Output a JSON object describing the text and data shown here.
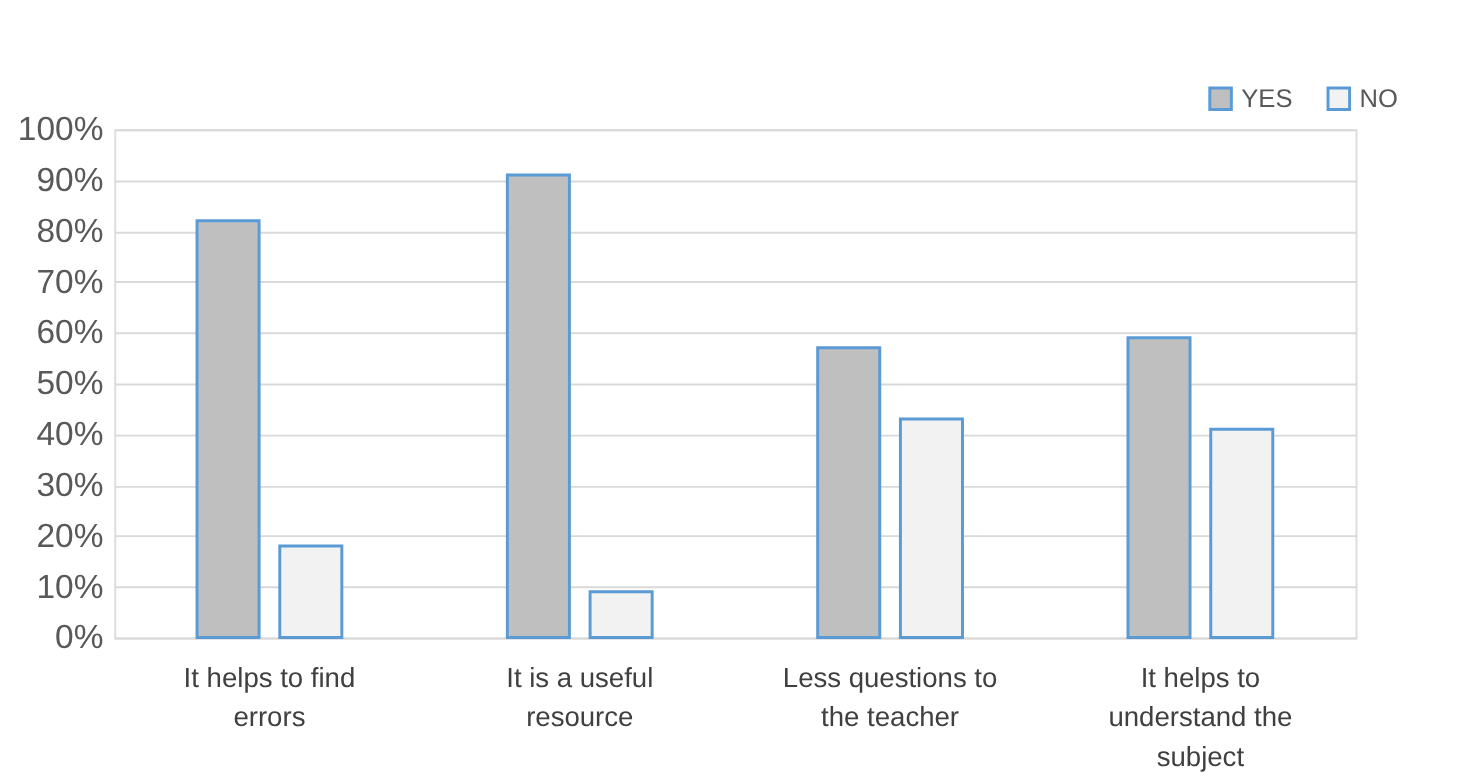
{
  "chart_data": {
    "type": "bar",
    "categories": [
      "It helps to find errors",
      "It is a useful resource",
      "Less questions to the teacher",
      "It helps to understand the subject"
    ],
    "series": [
      {
        "name": "YES",
        "color": "#bfbfbf",
        "values": [
          82,
          91,
          57,
          59
        ]
      },
      {
        "name": "NO",
        "color": "#f2f2f2",
        "values": [
          18,
          9,
          43,
          41
        ]
      }
    ],
    "ylim": [
      0,
      100
    ],
    "yticks": [
      {
        "value": 0,
        "label": "0%"
      },
      {
        "value": 10,
        "label": "10%"
      },
      {
        "value": 20,
        "label": "20%"
      },
      {
        "value": 30,
        "label": "30%"
      },
      {
        "value": 40,
        "label": "40%"
      },
      {
        "value": 50,
        "label": "50%"
      },
      {
        "value": 60,
        "label": "60%"
      },
      {
        "value": 70,
        "label": "70%"
      },
      {
        "value": 80,
        "label": "80%"
      },
      {
        "value": 90,
        "label": "90%"
      },
      {
        "value": 100,
        "label": "100%"
      }
    ],
    "grid": "y",
    "legend": "top right"
  }
}
